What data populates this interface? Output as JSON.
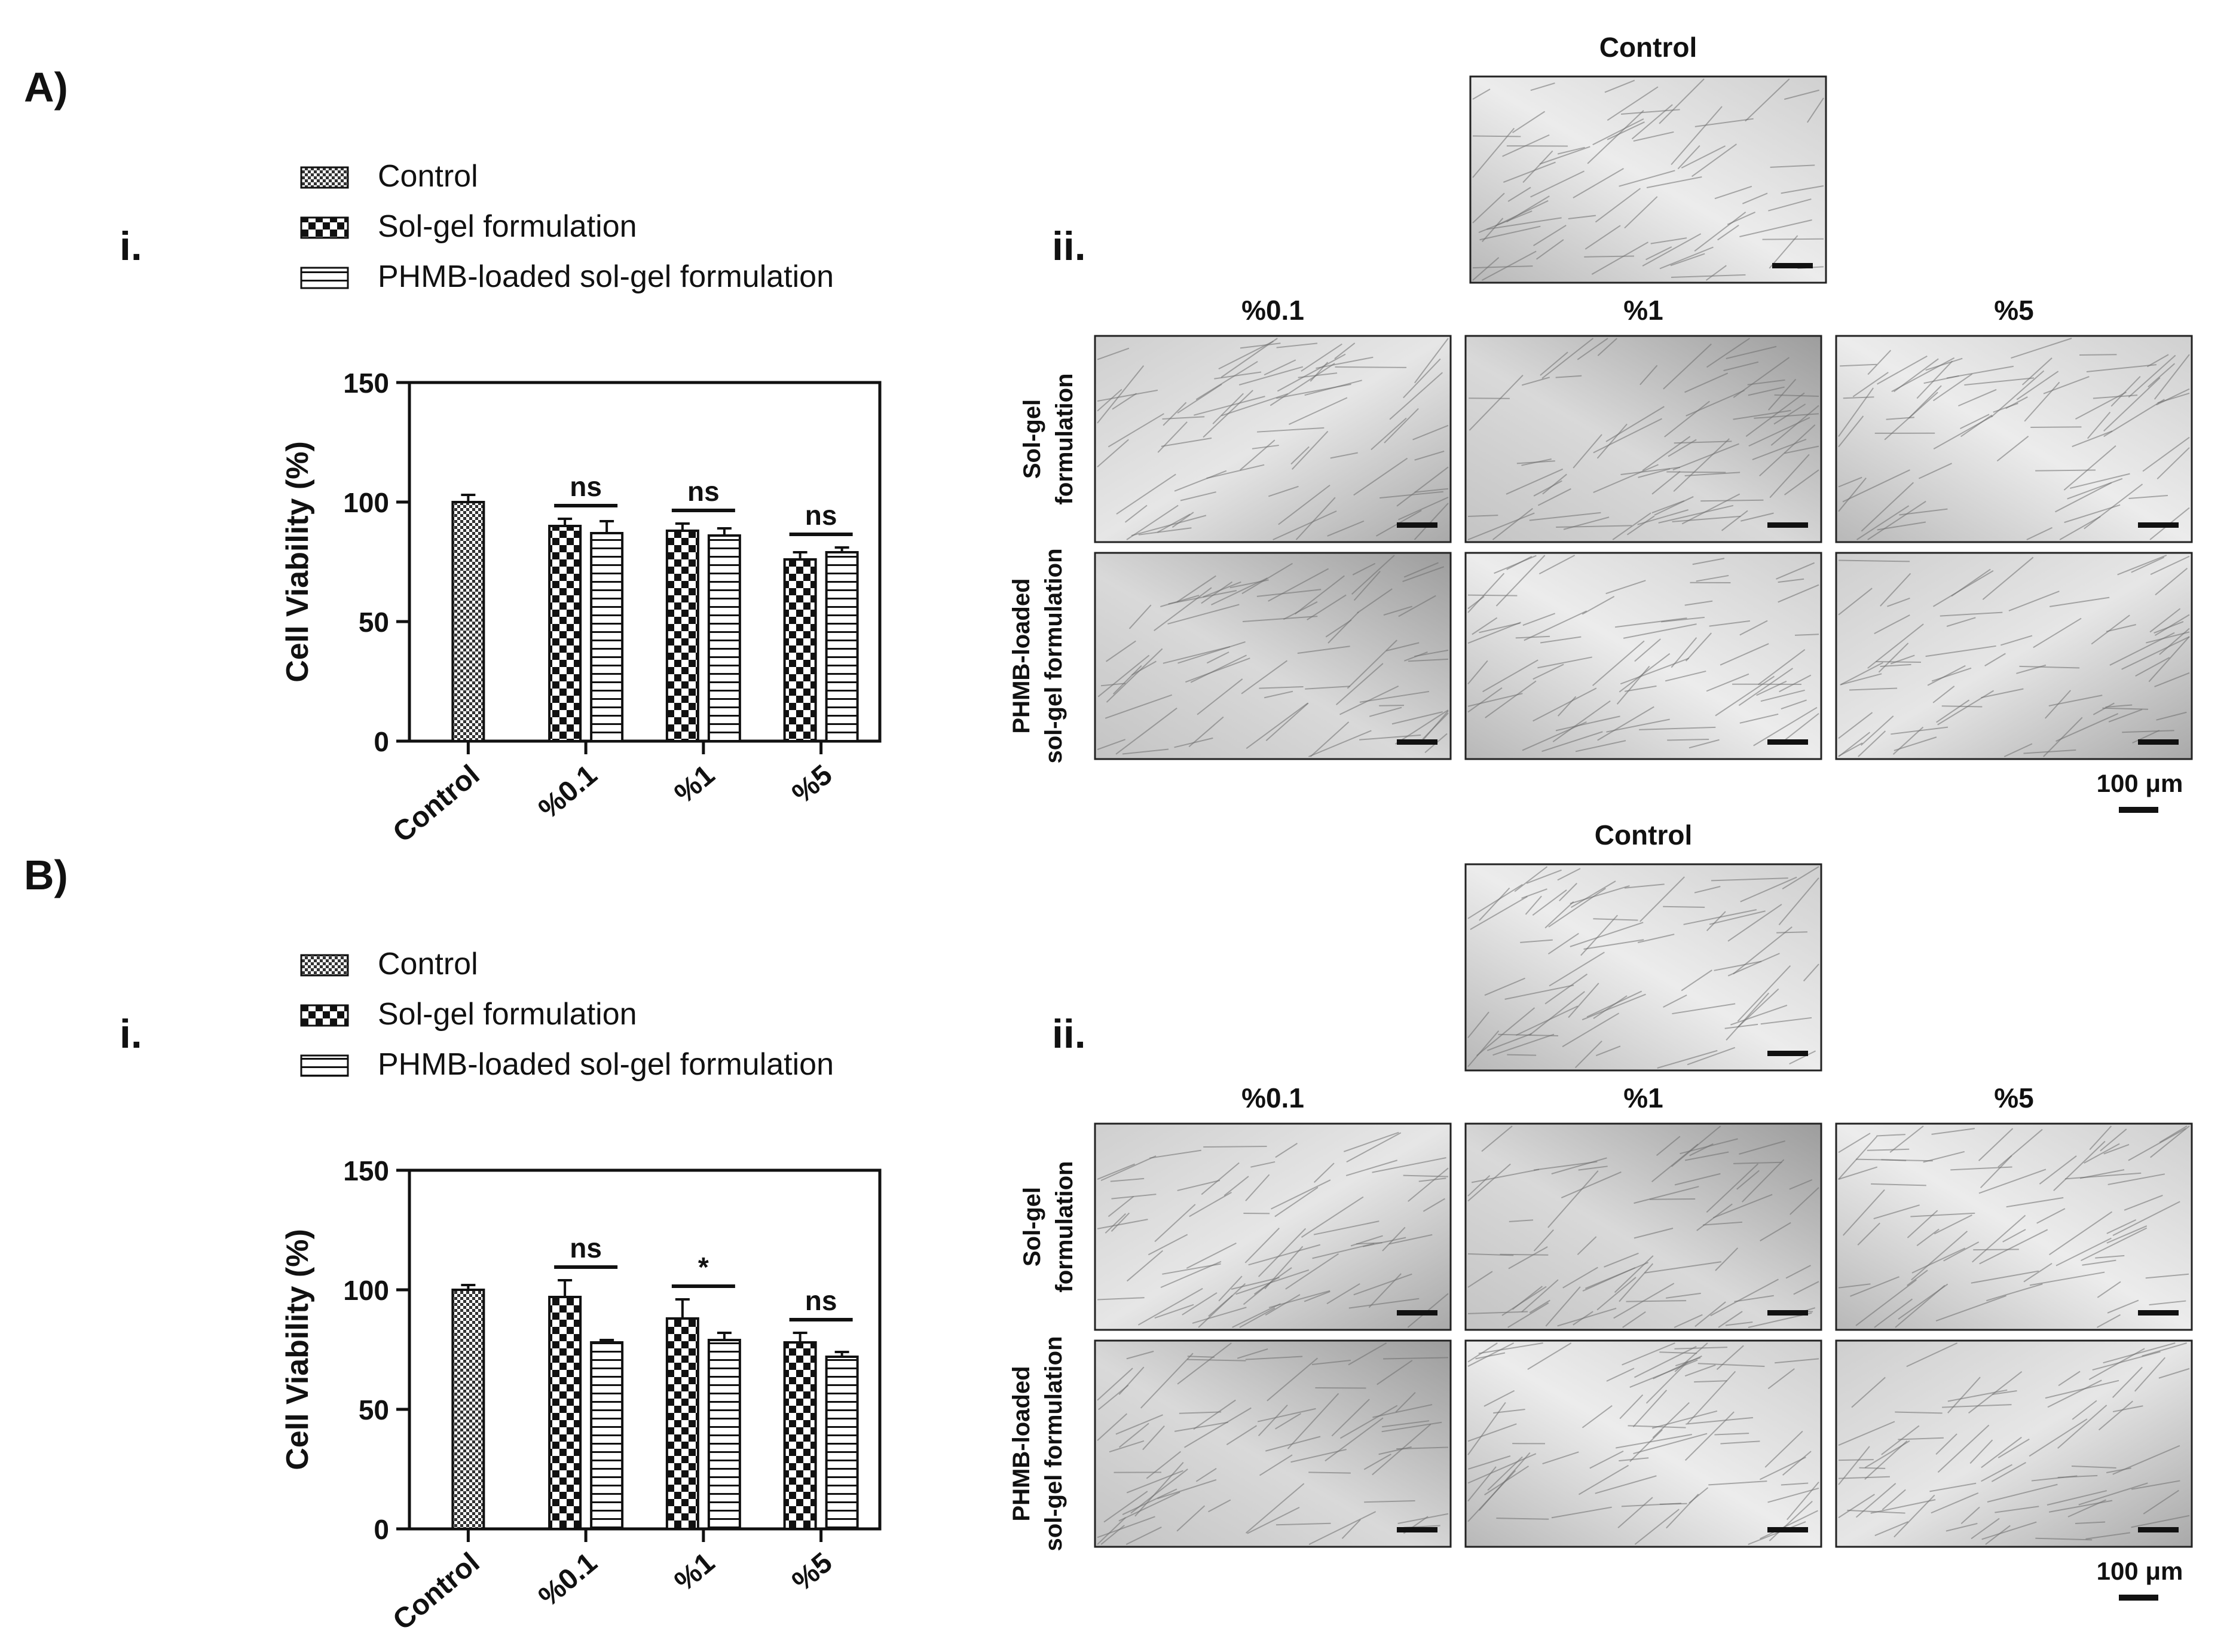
{
  "panels": [
    {
      "letter": "A)",
      "chart_label": "i.",
      "images_label": "ii.",
      "legend": [
        "Control",
        "Sol-gel formulation",
        "PHMB-loaded sol-gel formulation"
      ],
      "micro": {
        "control_title": "Control",
        "col_titles": [
          "%0.1",
          "%1",
          "%5"
        ],
        "row_labels": [
          [
            "Sol-gel",
            "formulation"
          ],
          [
            "PHMB-loaded",
            "sol-gel formulation"
          ]
        ],
        "scale_bar": "100 μm"
      }
    },
    {
      "letter": "B)",
      "chart_label": "i.",
      "images_label": "ii.",
      "legend": [
        "Control",
        "Sol-gel formulation",
        "PHMB-loaded sol-gel formulation"
      ],
      "micro": {
        "control_title": "Control",
        "col_titles": [
          "%0.1",
          "%1",
          "%5"
        ],
        "row_labels": [
          [
            "Sol-gel",
            "formulation"
          ],
          [
            "PHMB-loaded",
            "sol-gel formulation"
          ]
        ],
        "scale_bar": "100 μm"
      }
    }
  ],
  "chart_data": [
    {
      "type": "bar",
      "categories": [
        "Control",
        "%0.1",
        "%1",
        "%5"
      ],
      "ylabel": "Cell Viability (%)",
      "ylim": [
        0,
        150
      ],
      "yticks": [
        0,
        50,
        100,
        150
      ],
      "series": [
        {
          "name": "Control",
          "pattern": "fine-check",
          "values": [
            100,
            null,
            null,
            null
          ],
          "errors": [
            3,
            null,
            null,
            null
          ]
        },
        {
          "name": "Sol-gel formulation",
          "pattern": "checker",
          "values": [
            null,
            90,
            88,
            76
          ],
          "errors": [
            null,
            3,
            3,
            3
          ]
        },
        {
          "name": "PHMB-loaded sol-gel formulation",
          "pattern": "hstripe",
          "values": [
            null,
            87,
            86,
            79
          ],
          "errors": [
            null,
            5,
            3,
            2
          ]
        }
      ],
      "significance": [
        "ns",
        "ns",
        "ns"
      ]
    },
    {
      "type": "bar",
      "categories": [
        "Control",
        "%0.1",
        "%1",
        "%5"
      ],
      "ylabel": "Cell Viability (%)",
      "ylim": [
        0,
        150
      ],
      "yticks": [
        0,
        50,
        100,
        150
      ],
      "series": [
        {
          "name": "Control",
          "pattern": "fine-check",
          "values": [
            100,
            null,
            null,
            null
          ],
          "errors": [
            2,
            null,
            null,
            null
          ]
        },
        {
          "name": "Sol-gel formulation",
          "pattern": "checker",
          "values": [
            null,
            97,
            88,
            78
          ],
          "errors": [
            null,
            7,
            8,
            4
          ]
        },
        {
          "name": "PHMB-loaded sol-gel formulation",
          "pattern": "hstripe",
          "values": [
            null,
            78,
            79,
            72
          ],
          "errors": [
            null,
            1,
            3,
            2
          ]
        }
      ],
      "significance": [
        "ns",
        "*",
        "ns"
      ]
    }
  ]
}
